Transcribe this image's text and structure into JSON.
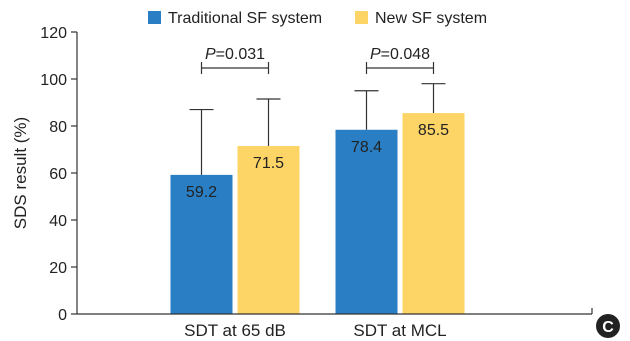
{
  "panel_label": "C",
  "colors": {
    "series0": "#2a7fc4",
    "series1": "#fdd466",
    "axis": "#333333"
  },
  "chart_data": {
    "type": "bar",
    "categories": [
      "SDT at 65 dB",
      "SDT at MCL"
    ],
    "series": [
      {
        "name": "Traditional SF system",
        "values": [
          59.2,
          78.4
        ],
        "error_upper": [
          87,
          95
        ]
      },
      {
        "name": "New SF system",
        "values": [
          71.5,
          85.5
        ],
        "error_upper": [
          91.5,
          98
        ]
      }
    ],
    "ylabel": "SDS result (%)",
    "xlabel": "",
    "ylim": [
      0,
      120
    ],
    "yticks": [
      0,
      20,
      40,
      60,
      80,
      100,
      120
    ],
    "grid": false,
    "legend_position": "top",
    "annotations": [
      {
        "category_index": 0,
        "p_label": "P",
        "p_value": "=0.031"
      },
      {
        "category_index": 1,
        "p_label": "P",
        "p_value": "=0.048"
      }
    ]
  }
}
